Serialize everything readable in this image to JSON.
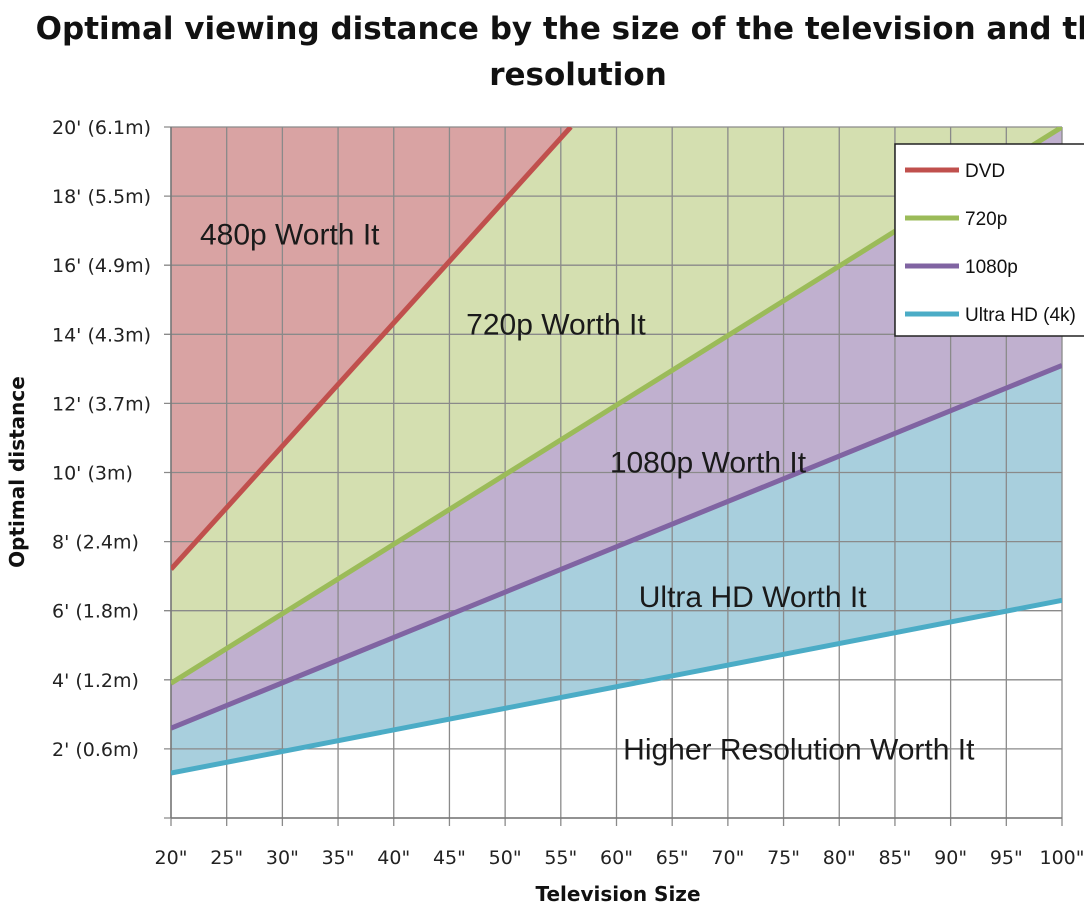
{
  "chart_data": {
    "type": "area",
    "title": "Optimal viewing distance by the size of the television and the resolution",
    "xlabel": "Television Size",
    "ylabel": "Optimal distance",
    "x": [
      20,
      25,
      30,
      35,
      40,
      45,
      50,
      55,
      60,
      65,
      70,
      75,
      80,
      85,
      90,
      95,
      100
    ],
    "x_tick_labels": [
      "20\"",
      "25\"",
      "30\"",
      "35\"",
      "40\"",
      "45\"",
      "50\"",
      "55\"",
      "60\"",
      "65\"",
      "70\"",
      "75\"",
      "80\"",
      "85\"",
      "90\"",
      "95\"",
      "100\""
    ],
    "xlim": [
      20,
      100
    ],
    "ylim": [
      0,
      20
    ],
    "y_ticks": [
      2,
      4,
      6,
      8,
      10,
      12,
      14,
      16,
      18,
      20
    ],
    "y_tick_labels": [
      "2' (0.6m)",
      "4' (1.2m)",
      "6' (1.8m)",
      "8' (2.4m)",
      "10' (3m)",
      "12' (3.7m)",
      "14' (4.3m)",
      "16' (4.9m)",
      "18' (5.5m)",
      "20' (6.1m)"
    ],
    "grid": true,
    "legend_position": "top-right",
    "series": [
      {
        "name": "DVD",
        "color": "#c0504d",
        "fill": "#d9a3a3",
        "x": [
          20,
          55.9
        ],
        "values": [
          7.2,
          20
        ]
      },
      {
        "name": "720p",
        "color": "#9bbb59",
        "fill": "#d4dfb0",
        "x": [
          20,
          100
        ],
        "values": [
          3.9,
          20
        ]
      },
      {
        "name": "1080p",
        "color": "#8064a2",
        "fill": "#c0b0cf",
        "x": [
          20,
          100
        ],
        "values": [
          2.6,
          13.1
        ]
      },
      {
        "name": "Ultra HD (4k)",
        "color": "#4bacc6",
        "fill": "#a8cfdd",
        "x": [
          20,
          100
        ],
        "values": [
          1.3,
          6.3
        ]
      }
    ],
    "annotations": [
      {
        "text": "480p Worth It",
        "x": 22.6,
        "y": 16.6
      },
      {
        "text": "720p Worth It",
        "x": 46.5,
        "y": 14.0
      },
      {
        "text": "1080p Worth It",
        "x": 59.4,
        "y": 10.0
      },
      {
        "text": "Ultra HD Worth It",
        "x": 62.0,
        "y": 6.1
      },
      {
        "text": "Higher Resolution Worth It",
        "x": 60.6,
        "y": 1.7
      }
    ]
  }
}
